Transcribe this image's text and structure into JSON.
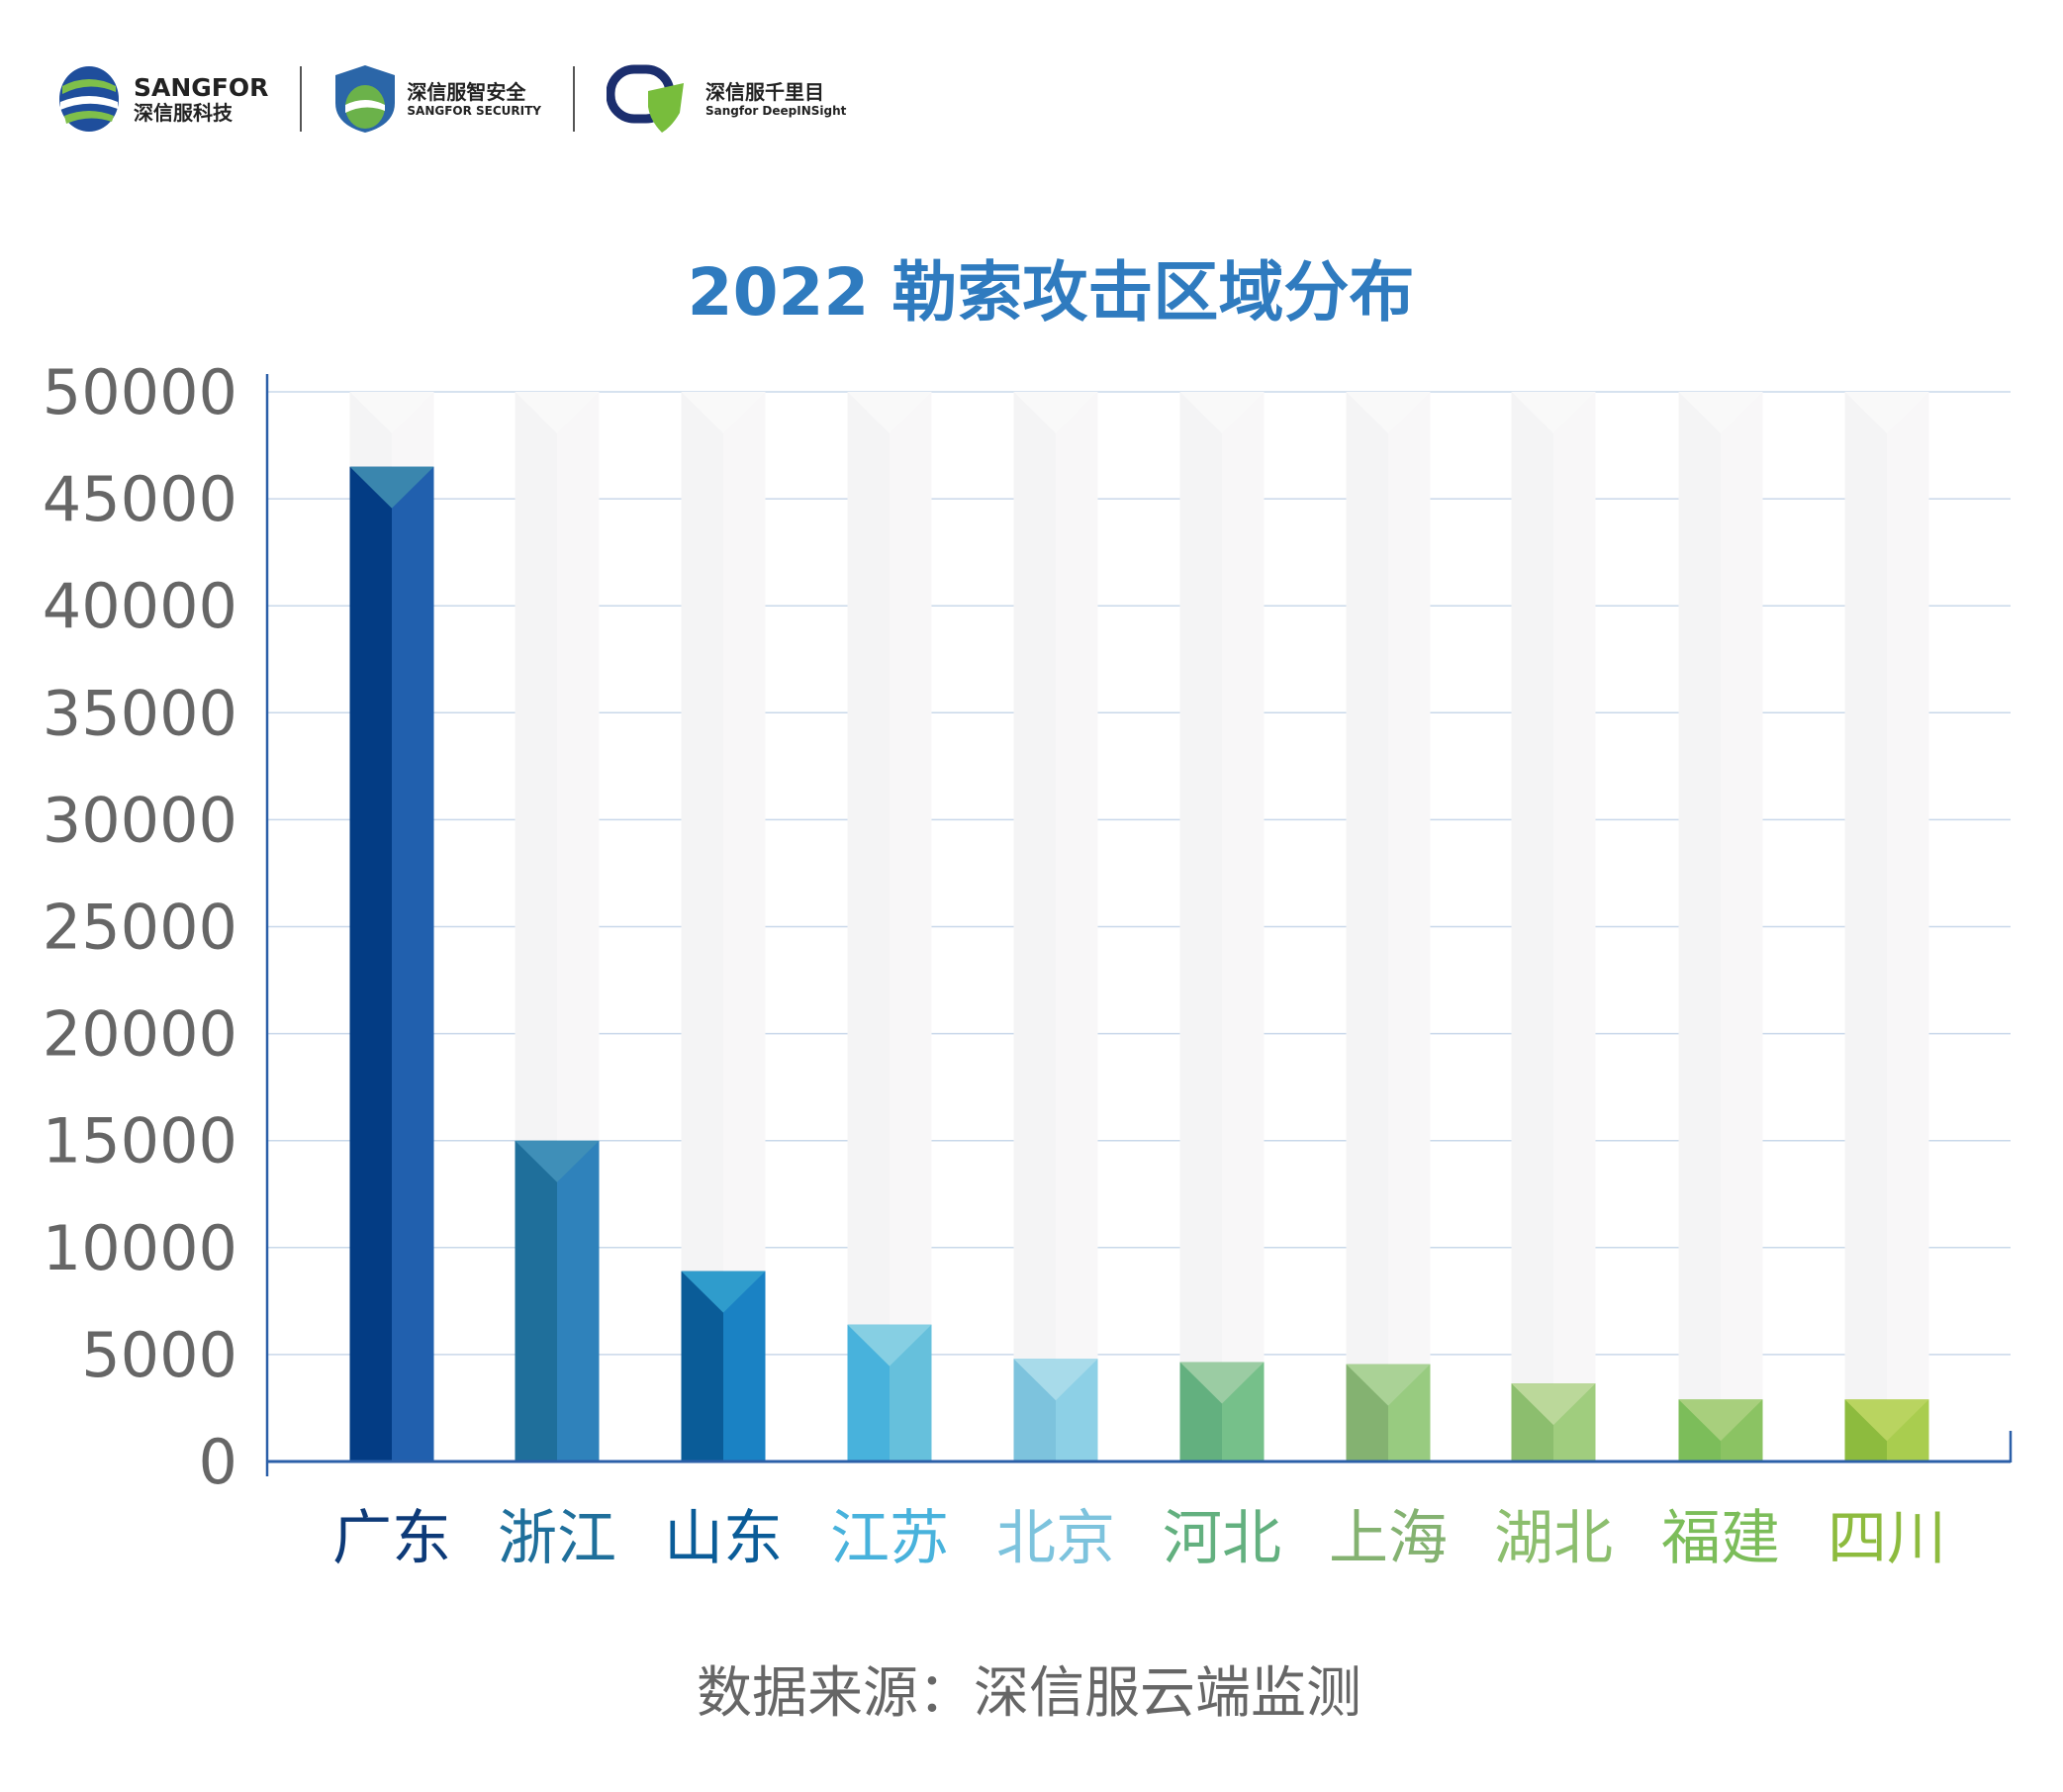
{
  "logos": {
    "sangfor": {
      "name": "SANGFOR",
      "cn": "深信服科技"
    },
    "security": {
      "cn": "深信服智安全",
      "en": "SANGFOR SECURITY"
    },
    "deepinsight": {
      "cn": "深信服千里目",
      "en": "Sangfor DeepINSight"
    }
  },
  "source": "数据来源：深信服云端监测",
  "chart_data": {
    "type": "bar",
    "title": "2022 勒索攻击区域分布",
    "xlabel": "",
    "ylabel": "",
    "ylim": [
      0,
      50000
    ],
    "yticks": [
      "0",
      "5000",
      "10000",
      "15000",
      "20000",
      "25000",
      "30000",
      "35000",
      "40000",
      "45000",
      "50000"
    ],
    "grid": true,
    "categories": [
      "广东",
      "浙江",
      "山东",
      "江苏",
      "北京",
      "河北",
      "上海",
      "湖北",
      "福建",
      "四川"
    ],
    "values": [
      46500,
      15000,
      8900,
      6400,
      4800,
      4650,
      4550,
      3650,
      2900,
      2900
    ],
    "colors": [
      {
        "dark": "#033c84",
        "light": "#2160ae",
        "top": "#3a86ae",
        "label": "#0d3a78"
      },
      {
        "dark": "#1f6f9b",
        "light": "#2f82bb",
        "top": "#3f8fb8",
        "label": "#1f6f9b"
      },
      {
        "dark": "#0a5c98",
        "light": "#1a82c4",
        "top": "#2f9ccc",
        "label": "#0a5c98"
      },
      {
        "dark": "#48b2dc",
        "light": "#66c0dc",
        "top": "#86cfe3",
        "label": "#48b2dc"
      },
      {
        "dark": "#7dc3dd",
        "light": "#8dd0e6",
        "top": "#a8dbea",
        "label": "#7dc3dd"
      },
      {
        "dark": "#63b07f",
        "light": "#76c08a",
        "top": "#9bcca3",
        "label": "#63b07f"
      },
      {
        "dark": "#84b271",
        "light": "#98cb80",
        "top": "#aad296",
        "label": "#84b271"
      },
      {
        "dark": "#8cbe6e",
        "light": "#a0cd7e",
        "top": "#bbd89a",
        "label": "#8cbe6e"
      },
      {
        "dark": "#7cbd5a",
        "light": "#8bc363",
        "top": "#a8cf7d",
        "label": "#7cbd5a"
      },
      {
        "dark": "#8dbb3e",
        "light": "#a9cd4f",
        "top": "#b9d460",
        "label": "#8dbb3e"
      }
    ]
  }
}
